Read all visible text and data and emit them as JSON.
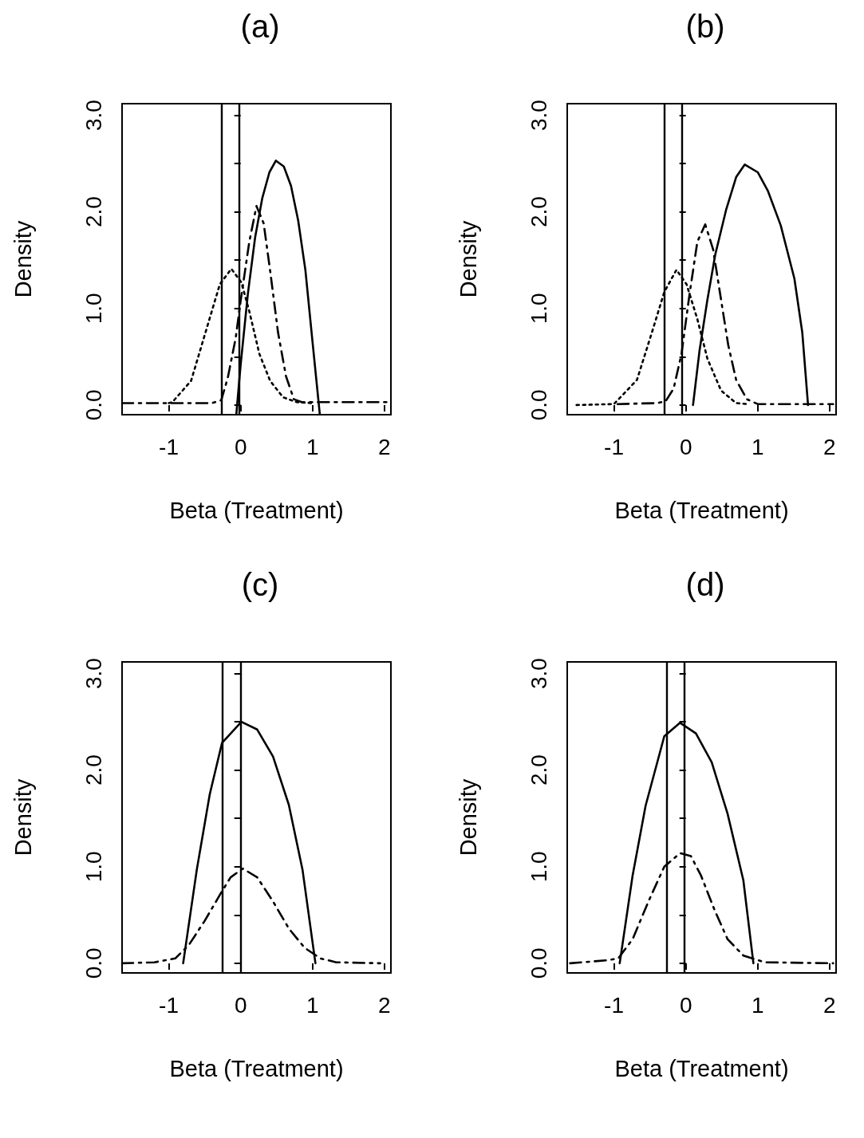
{
  "chart_data": [
    {
      "type": "line",
      "title": "(a)",
      "xlabel": "Beta (Treatment)",
      "ylabel": "Density",
      "xlim": [
        -1.65,
        2.09
      ],
      "ylim": [
        -0.1,
        3.12
      ],
      "xticks": [
        -1,
        0,
        1,
        2
      ],
      "yticks": [
        {
          "value": 0,
          "label": "0.0"
        },
        {
          "value": 0.5,
          "label": null
        },
        {
          "value": 1,
          "label": "1.0"
        },
        {
          "value": 1.5,
          "label": null
        },
        {
          "value": 2,
          "label": "2.0"
        },
        {
          "value": 2.5,
          "label": null
        },
        {
          "value": 3,
          "label": "3.0"
        }
      ],
      "marker": "none",
      "grid": false,
      "ref_lines": [
        {
          "axis": "x",
          "value": -0.27,
          "color": "#000000"
        },
        {
          "axis": "x",
          "value": -0.02,
          "color": "#000000"
        }
      ],
      "series": [
        {
          "color": "#000000",
          "line_style": "solid",
          "x": [
            -0.06,
            0.0,
            0.1,
            0.2,
            0.3,
            0.4,
            0.49,
            0.6,
            0.7,
            0.8,
            0.9,
            1.0,
            1.1
          ],
          "values": [
            -0.09,
            0.42,
            1.15,
            1.73,
            2.14,
            2.41,
            2.53,
            2.47,
            2.27,
            1.91,
            1.4,
            0.65,
            -0.09
          ]
        },
        {
          "color": "#000000",
          "line_style": "dashed",
          "x": [
            -1.65,
            -0.4,
            -0.27,
            -0.18,
            -0.07,
            0.0,
            0.12,
            0.22,
            0.32,
            0.41,
            0.52,
            0.63,
            0.74,
            0.85,
            2.05
          ],
          "values": [
            0.02,
            0.02,
            0.05,
            0.28,
            0.69,
            1.08,
            1.69,
            2.06,
            1.88,
            1.39,
            0.75,
            0.3,
            0.06,
            0.03,
            0.03
          ]
        },
        {
          "color": "#000000",
          "line_style": "dotted",
          "x": [
            -1.0,
            -0.95,
            -0.69,
            -0.47,
            -0.29,
            -0.13,
            0.01,
            0.12,
            0.26,
            0.41,
            0.59,
            0.78,
            1.0
          ],
          "values": [
            0.02,
            0.03,
            0.25,
            0.8,
            1.25,
            1.41,
            1.27,
            0.97,
            0.53,
            0.25,
            0.08,
            0.03,
            0.02
          ]
        }
      ]
    },
    {
      "type": "line",
      "title": "(b)",
      "xlabel": "Beta (Treatment)",
      "ylabel": "Density",
      "xlim": [
        -1.65,
        2.09
      ],
      "ylim": [
        -0.1,
        3.12
      ],
      "xticks": [
        -1,
        0,
        1,
        2
      ],
      "yticks": [
        {
          "value": 0,
          "label": "0.0"
        },
        {
          "value": 0.5,
          "label": null
        },
        {
          "value": 1,
          "label": "1.0"
        },
        {
          "value": 1.5,
          "label": null
        },
        {
          "value": 2,
          "label": "2.0"
        },
        {
          "value": 2.5,
          "label": null
        },
        {
          "value": 3,
          "label": "3.0"
        }
      ],
      "marker": "none",
      "grid": false,
      "ref_lines": [
        {
          "axis": "x",
          "value": -0.3,
          "color": "#000000"
        },
        {
          "axis": "x",
          "value": -0.05,
          "color": "#000000"
        }
      ],
      "series": [
        {
          "color": "#000000",
          "line_style": "solid",
          "x": [
            0.1,
            0.19,
            0.3,
            0.41,
            0.56,
            0.7,
            0.82,
            1.0,
            1.14,
            1.32,
            1.51,
            1.62,
            1.7
          ],
          "values": [
            0.0,
            0.56,
            1.09,
            1.56,
            2.02,
            2.36,
            2.49,
            2.41,
            2.22,
            1.86,
            1.31,
            0.75,
            0.0
          ]
        },
        {
          "color": "#000000",
          "line_style": "dashed",
          "x": [
            -0.95,
            -0.4,
            -0.28,
            -0.17,
            -0.06,
            0.05,
            0.16,
            0.27,
            0.38,
            0.49,
            0.59,
            0.7,
            0.85,
            1.0,
            2.05
          ],
          "values": [
            0.01,
            0.02,
            0.04,
            0.17,
            0.53,
            1.14,
            1.69,
            1.87,
            1.61,
            1.09,
            0.62,
            0.26,
            0.06,
            0.01,
            0.01
          ]
        },
        {
          "color": "#000000",
          "line_style": "dotted",
          "x": [
            -1.52,
            -1.0,
            -0.68,
            -0.46,
            -0.3,
            -0.13,
            0.01,
            0.16,
            0.3,
            0.49,
            0.7,
            0.85
          ],
          "values": [
            0.0,
            0.01,
            0.26,
            0.78,
            1.17,
            1.4,
            1.25,
            0.89,
            0.48,
            0.15,
            0.02,
            0.01
          ]
        }
      ]
    },
    {
      "type": "line",
      "title": "(c)",
      "xlabel": "Beta (Treatment)",
      "ylabel": "Density",
      "xlim": [
        -1.65,
        2.09
      ],
      "ylim": [
        -0.1,
        3.12
      ],
      "xticks": [
        -1,
        0,
        1,
        2
      ],
      "yticks": [
        {
          "value": 0,
          "label": "0.0"
        },
        {
          "value": 0.5,
          "label": null
        },
        {
          "value": 1,
          "label": "1.0"
        },
        {
          "value": 1.5,
          "label": null
        },
        {
          "value": 2,
          "label": "2.0"
        },
        {
          "value": 2.5,
          "label": null
        },
        {
          "value": 3,
          "label": "3.0"
        }
      ],
      "marker": "none",
      "grid": false,
      "ref_lines": [
        {
          "axis": "x",
          "value": -0.25,
          "color": "#000000"
        },
        {
          "axis": "x",
          "value": 0.0,
          "color": "#000000"
        }
      ],
      "series": [
        {
          "color": "#000000",
          "line_style": "solid",
          "x": [
            -0.8,
            -0.61,
            -0.43,
            -0.26,
            0.01,
            0.23,
            0.45,
            0.67,
            0.86,
            1.04
          ],
          "values": [
            0.0,
            0.97,
            1.75,
            2.28,
            2.5,
            2.42,
            2.14,
            1.64,
            0.97,
            0.0
          ]
        },
        {
          "color": "#000000",
          "line_style": "dashed",
          "x": [
            -1.65,
            -1.2,
            -0.91,
            -0.72,
            -0.5,
            -0.28,
            -0.14,
            0.03,
            0.23,
            0.45,
            0.67,
            0.89,
            1.11,
            1.33,
            1.94
          ],
          "values": [
            0.0,
            0.01,
            0.05,
            0.19,
            0.44,
            0.72,
            0.89,
            0.98,
            0.89,
            0.64,
            0.36,
            0.16,
            0.05,
            0.01,
            0.0
          ]
        }
      ]
    },
    {
      "type": "line",
      "title": "(d)",
      "xlabel": "Beta (Treatment)",
      "ylabel": "Density",
      "xlim": [
        -1.65,
        2.09
      ],
      "ylim": [
        -0.1,
        3.12
      ],
      "xticks": [
        -1,
        0,
        1,
        2
      ],
      "yticks": [
        {
          "value": 0,
          "label": "0.0"
        },
        {
          "value": 0.5,
          "label": null
        },
        {
          "value": 1,
          "label": "1.0"
        },
        {
          "value": 1.5,
          "label": null
        },
        {
          "value": 2,
          "label": "2.0"
        },
        {
          "value": 2.5,
          "label": null
        },
        {
          "value": 3,
          "label": "3.0"
        }
      ],
      "marker": "none",
      "grid": false,
      "ref_lines": [
        {
          "axis": "x",
          "value": -0.27,
          "color": "#000000"
        },
        {
          "axis": "x",
          "value": -0.02,
          "color": "#000000"
        }
      ],
      "series": [
        {
          "color": "#000000",
          "line_style": "solid",
          "x": [
            -0.92,
            -0.74,
            -0.56,
            -0.3,
            -0.08,
            0.14,
            0.36,
            0.58,
            0.8,
            0.94
          ],
          "values": [
            0.0,
            0.91,
            1.63,
            2.35,
            2.49,
            2.38,
            2.08,
            1.55,
            0.86,
            0.0
          ]
        },
        {
          "color": "#000000",
          "line_style": "dashed",
          "x": [
            -1.61,
            -1.11,
            -0.94,
            -0.74,
            -0.52,
            -0.3,
            -0.08,
            0.07,
            0.21,
            0.4,
            0.58,
            0.8,
            1.1,
            2.05
          ],
          "values": [
            0.0,
            0.03,
            0.05,
            0.25,
            0.64,
            1.0,
            1.14,
            1.11,
            0.91,
            0.55,
            0.25,
            0.08,
            0.01,
            0.0
          ]
        }
      ]
    }
  ]
}
